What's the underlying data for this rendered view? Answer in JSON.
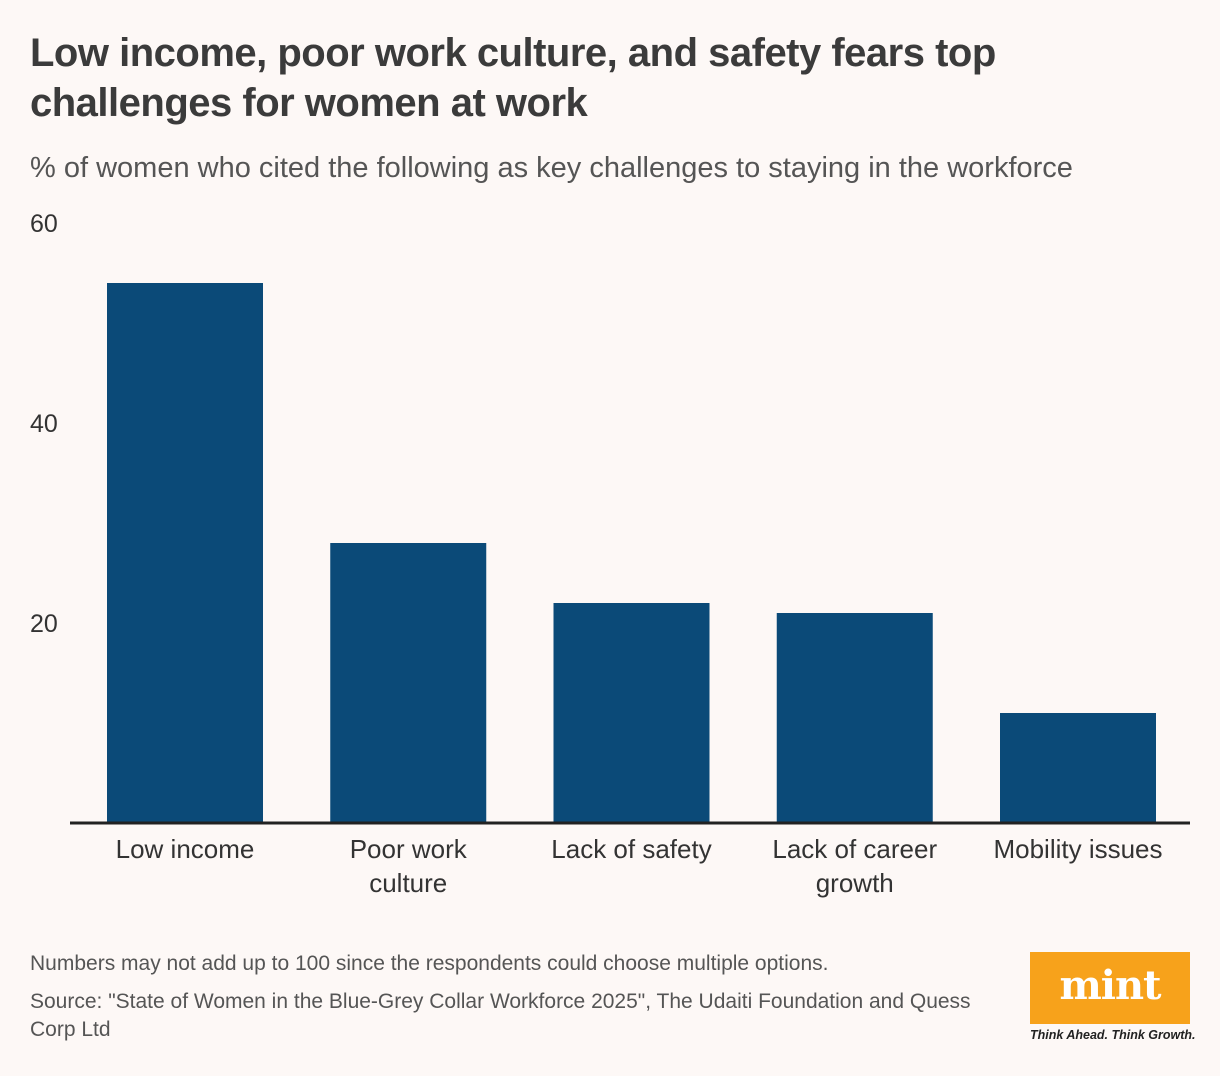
{
  "title": "Low income, poor work culture, and safety fears top challenges for women at work",
  "subtitle": "% of women who cited the following as key challenges to staying in the workforce",
  "footnote": "Numbers may not add up to 100 since the respondents could choose multiple options.",
  "source": "Source: \"State of Women in the Blue-Grey Collar Workforce 2025\", The Udaiti Foundation and Quess Corp Ltd",
  "logo": {
    "word": "mint",
    "tagline": "Think Ahead. Think Growth.",
    "color": "#f7a21b"
  },
  "chart_data": {
    "type": "bar",
    "categories": [
      [
        "Low income"
      ],
      [
        "Poor work",
        "culture"
      ],
      [
        "Lack of safety"
      ],
      [
        "Lack of career",
        "growth"
      ],
      [
        "Mobility issues"
      ]
    ],
    "values": [
      54,
      28,
      22,
      21,
      11
    ],
    "ylim": [
      0,
      60
    ],
    "yticks": [
      20,
      40,
      60
    ],
    "bar_color": "#0b4a78",
    "grid": false
  }
}
